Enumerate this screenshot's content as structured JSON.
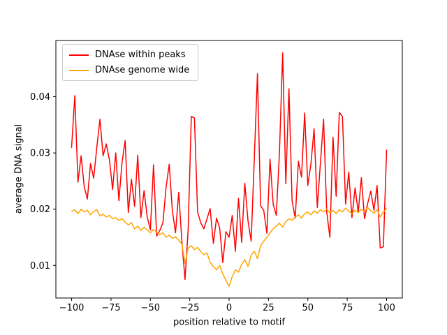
{
  "figure": {
    "background": "#ffffff"
  },
  "chart_data": {
    "type": "line",
    "title": "",
    "xlabel": "position relative to motif",
    "ylabel": "average DNA signal",
    "xlim": [
      -110,
      110
    ],
    "ylim": [
      0.0042,
      0.05
    ],
    "xticks": [
      -100,
      -75,
      -50,
      -25,
      0,
      25,
      50,
      75,
      100
    ],
    "yticks": [
      0.01,
      0.02,
      0.03,
      0.04
    ],
    "grid": false,
    "legend_position": "upper-left",
    "x": [
      -100,
      -98,
      -96,
      -94,
      -92,
      -90,
      -88,
      -86,
      -84,
      -82,
      -80,
      -78,
      -76,
      -74,
      -72,
      -70,
      -68,
      -66,
      -64,
      -62,
      -60,
      -58,
      -56,
      -54,
      -52,
      -50,
      -48,
      -46,
      -44,
      -42,
      -40,
      -38,
      -36,
      -34,
      -32,
      -30,
      -28,
      -26,
      -24,
      -22,
      -20,
      -18,
      -16,
      -14,
      -12,
      -10,
      -8,
      -6,
      -4,
      -2,
      0,
      2,
      4,
      6,
      8,
      10,
      12,
      14,
      16,
      18,
      20,
      22,
      24,
      26,
      28,
      30,
      32,
      34,
      36,
      38,
      40,
      42,
      44,
      46,
      48,
      50,
      52,
      54,
      56,
      58,
      60,
      62,
      64,
      66,
      68,
      70,
      72,
      74,
      76,
      78,
      80,
      82,
      84,
      86,
      88,
      90,
      92,
      94,
      96,
      98,
      100
    ],
    "series": [
      {
        "name": "DNAse within peaks",
        "color": "#ff0000",
        "values": [
          0.031,
          0.0402,
          0.0248,
          0.0295,
          0.024,
          0.0218,
          0.0281,
          0.0255,
          0.031,
          0.036,
          0.0295,
          0.0316,
          0.0288,
          0.0235,
          0.03,
          0.0215,
          0.0283,
          0.0322,
          0.0194,
          0.0253,
          0.0205,
          0.0296,
          0.0185,
          0.0233,
          0.0186,
          0.0163,
          0.0279,
          0.0152,
          0.0162,
          0.0176,
          0.0239,
          0.028,
          0.0197,
          0.0158,
          0.023,
          0.0143,
          0.0075,
          0.0164,
          0.0365,
          0.0362,
          0.0195,
          0.0176,
          0.0165,
          0.0183,
          0.0201,
          0.0139,
          0.0184,
          0.0167,
          0.0105,
          0.016,
          0.015,
          0.0189,
          0.0125,
          0.0219,
          0.0141,
          0.0246,
          0.0179,
          0.0143,
          0.029,
          0.0441,
          0.0206,
          0.0198,
          0.0157,
          0.0289,
          0.0209,
          0.0189,
          0.03,
          0.0478,
          0.0245,
          0.0414,
          0.0215,
          0.0184,
          0.0285,
          0.0257,
          0.0371,
          0.0242,
          0.0281,
          0.0343,
          0.0203,
          0.0283,
          0.036,
          0.0195,
          0.015,
          0.0328,
          0.0223,
          0.0372,
          0.0365,
          0.0209,
          0.0266,
          0.0185,
          0.0238,
          0.0194,
          0.0256,
          0.0183,
          0.021,
          0.0232,
          0.0198,
          0.0242,
          0.0131,
          0.0133,
          0.0305
        ]
      },
      {
        "name": "DNAse genome wide",
        "color": "#ffa500",
        "values": [
          0.0196,
          0.0199,
          0.0192,
          0.02,
          0.0195,
          0.0198,
          0.019,
          0.0196,
          0.0199,
          0.0188,
          0.0191,
          0.0186,
          0.0189,
          0.0183,
          0.0185,
          0.018,
          0.0183,
          0.0177,
          0.0172,
          0.0176,
          0.0165,
          0.017,
          0.0162,
          0.0168,
          0.0163,
          0.0158,
          0.0164,
          0.0159,
          0.0155,
          0.0158,
          0.015,
          0.0154,
          0.0148,
          0.0151,
          0.0145,
          0.0138,
          0.0104,
          0.0131,
          0.0135,
          0.0128,
          0.0132,
          0.0125,
          0.0119,
          0.0122,
          0.0105,
          0.0098,
          0.0092,
          0.01,
          0.0085,
          0.0073,
          0.0063,
          0.008,
          0.0092,
          0.0088,
          0.0102,
          0.011,
          0.0098,
          0.0118,
          0.0125,
          0.0112,
          0.0135,
          0.0143,
          0.015,
          0.0158,
          0.0165,
          0.017,
          0.0175,
          0.0168,
          0.0178,
          0.0183,
          0.018,
          0.0186,
          0.019,
          0.0184,
          0.0192,
          0.0195,
          0.019,
          0.0197,
          0.0193,
          0.0199,
          0.0195,
          0.02,
          0.0193,
          0.0198,
          0.0192,
          0.0199,
          0.0195,
          0.0202,
          0.0196,
          0.0192,
          0.0198,
          0.0194,
          0.02,
          0.0196,
          0.0203,
          0.0197,
          0.0193,
          0.0199,
          0.0186,
          0.0195,
          0.0201
        ]
      }
    ]
  }
}
